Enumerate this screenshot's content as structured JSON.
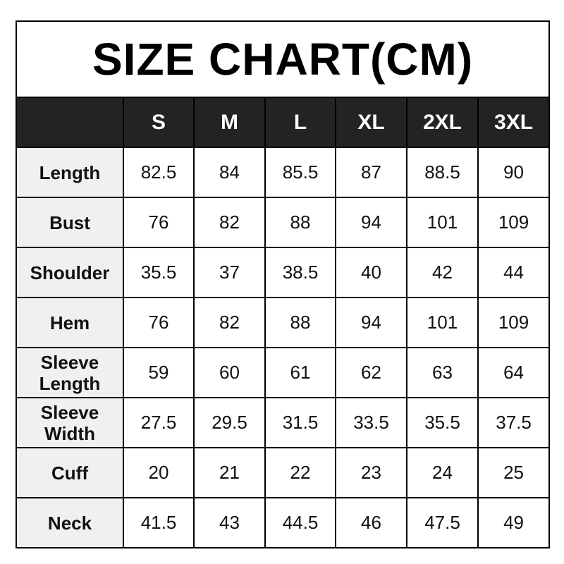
{
  "title": "SIZE CHART(CM)",
  "colors": {
    "header_bg": "#232323",
    "header_text": "#ffffff",
    "label_bg": "#f0f0f0",
    "border": "#000000"
  },
  "chart_data": {
    "type": "table",
    "title": "SIZE CHART(CM)",
    "columns": [
      "",
      "S",
      "M",
      "L",
      "XL",
      "2XL",
      "3XL"
    ],
    "rows": [
      {
        "label": "Length",
        "values": [
          "82.5",
          "84",
          "85.5",
          "87",
          "88.5",
          "90"
        ]
      },
      {
        "label": "Bust",
        "values": [
          "76",
          "82",
          "88",
          "94",
          "101",
          "109"
        ]
      },
      {
        "label": "Shoulder",
        "values": [
          "35.5",
          "37",
          "38.5",
          "40",
          "42",
          "44"
        ]
      },
      {
        "label": "Hem",
        "values": [
          "76",
          "82",
          "88",
          "94",
          "101",
          "109"
        ]
      },
      {
        "label": "Sleeve Length",
        "values": [
          "59",
          "60",
          "61",
          "62",
          "63",
          "64"
        ]
      },
      {
        "label": "Sleeve Width",
        "values": [
          "27.5",
          "29.5",
          "31.5",
          "33.5",
          "35.5",
          "37.5"
        ]
      },
      {
        "label": "Cuff",
        "values": [
          "20",
          "21",
          "22",
          "23",
          "24",
          "25"
        ]
      },
      {
        "label": "Neck",
        "values": [
          "41.5",
          "43",
          "44.5",
          "46",
          "47.5",
          "49"
        ]
      }
    ]
  }
}
